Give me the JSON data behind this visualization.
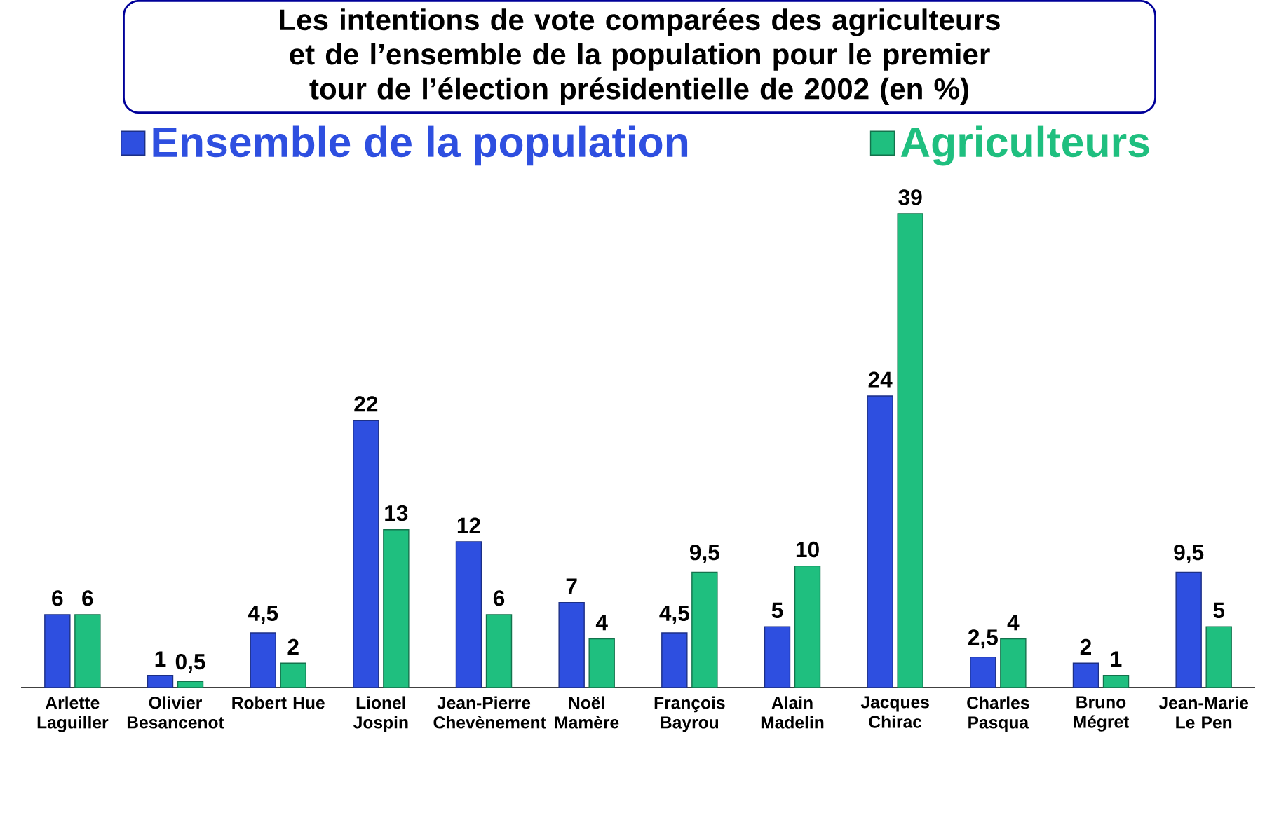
{
  "chart_data": {
    "type": "bar",
    "title": "Les intentions de vote comparées des agriculteurs et de l’ensemble de la population pour le premier tour de l’élection présidentielle de 2002 (en %)",
    "categories": [
      "Arlette Laguiller",
      "Olivier Besancenot",
      "Robert Hue",
      "Lionel Jospin",
      "Jean-Pierre Chevènement",
      "Noël Mamère",
      "François Bayrou",
      "Alain Madelin",
      "Jacques Chirac",
      "Charles Pasqua",
      "Bruno Mégret",
      "Jean-Marie Le Pen"
    ],
    "series": [
      {
        "name": "Ensemble de la population",
        "color": "#2e4fe0",
        "values": [
          6,
          1,
          4.5,
          22,
          12,
          7,
          4.5,
          5,
          24,
          2.5,
          2,
          9.5
        ],
        "value_labels": [
          "6",
          "1",
          "4,5",
          "22",
          "12",
          "7",
          "4,5",
          "5",
          "24",
          "2,5",
          "2",
          "9,5"
        ]
      },
      {
        "name": "Agriculteurs",
        "color": "#1fbf7f",
        "values": [
          6,
          0.5,
          2,
          13,
          6,
          4,
          9.5,
          10,
          39,
          4,
          1,
          5
        ],
        "value_labels": [
          "6",
          "0,5",
          "2",
          "13",
          "6",
          "4",
          "9,5",
          "10",
          "39",
          "4",
          "1",
          "5"
        ]
      }
    ],
    "legend": "top"
  }
}
